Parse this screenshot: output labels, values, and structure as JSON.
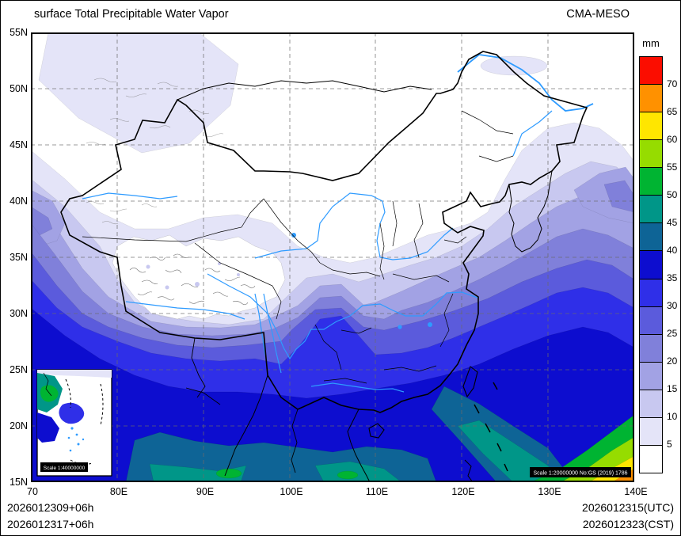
{
  "header": {
    "title": "surface Total Precipitable Water Vapor",
    "model": "CMA-MESO"
  },
  "colorbar": {
    "unit": "mm",
    "labels": [
      "70",
      "65",
      "60",
      "55",
      "50",
      "45",
      "40",
      "35",
      "30",
      "25",
      "20",
      "15",
      "10",
      "5"
    ],
    "colors_top_to_bottom": [
      "#fb0d00",
      "#ff9100",
      "#ffe600",
      "#96dc00",
      "#00b432",
      "#009688",
      "#0e6496",
      "#0d0dcf",
      "#2f2fe8",
      "#5b5bdc",
      "#8080da",
      "#a2a2e4",
      "#c8c8f0",
      "#e4e4f8",
      "#ffffff"
    ]
  },
  "axes": {
    "lat": [
      "55N",
      "50N",
      "45N",
      "40N",
      "35N",
      "30N",
      "25N",
      "20N",
      "15N"
    ],
    "lon": [
      "70",
      "80E",
      "90E",
      "100E",
      "110E",
      "120E",
      "130E",
      "140E"
    ]
  },
  "map": {
    "inset_scale_label": "Scale 1:40000000",
    "scale_note": "Scale 1:20000000 No:GS (2019) 1786",
    "river_color": "#2e9bff",
    "boundary_color": "#000000",
    "grid_color": "#6b6b6b"
  },
  "footer": {
    "line1_left": "2026012309+06h",
    "line2_left": "2026012317+06h",
    "line1_right": "2026012315(UTC)",
    "line2_right": "2026012323(CST)"
  },
  "chart_data": {
    "type": "heatmap",
    "title": "surface Total Precipitable Water Vapor",
    "unit": "mm",
    "levels": [
      5,
      10,
      15,
      20,
      25,
      30,
      35,
      40,
      45,
      50,
      55,
      60,
      65,
      70
    ],
    "lon_range": [
      70,
      140
    ],
    "lat_range": [
      15,
      55
    ],
    "legend_position": "right",
    "grid": "dashed"
  }
}
